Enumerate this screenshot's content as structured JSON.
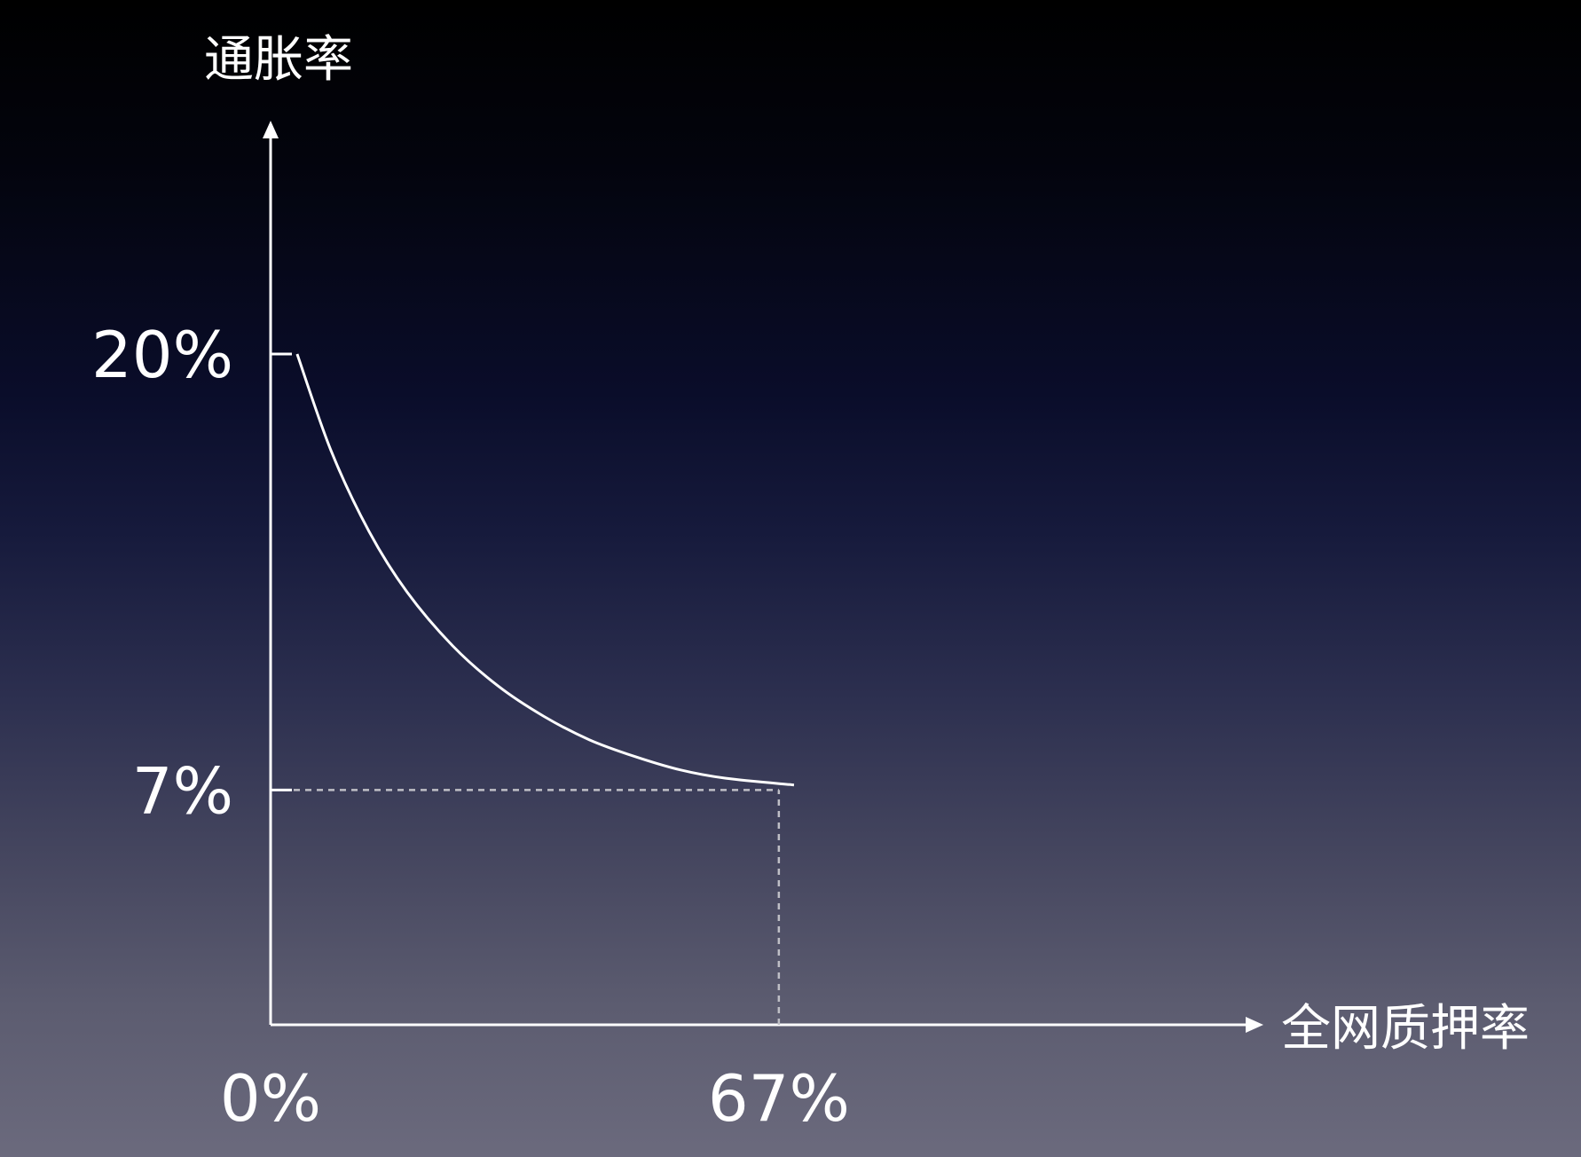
{
  "chart_data": {
    "type": "line",
    "ylabel": "通胀率",
    "xlabel": "全网质押率",
    "x_ticks": [
      {
        "value": 0,
        "label": "0%"
      },
      {
        "value": 67,
        "label": "67%"
      }
    ],
    "y_ticks": [
      {
        "value": 7,
        "label": "7%"
      },
      {
        "value": 20,
        "label": "20%"
      }
    ],
    "xlim": [
      0,
      155
    ],
    "ylim": [
      0,
      30
    ],
    "grid": false,
    "legend": "none",
    "series": [
      {
        "points": [
          {
            "x": 3.5,
            "y": 20
          },
          {
            "x": 8,
            "y": 17.1
          },
          {
            "x": 13,
            "y": 14.7
          },
          {
            "x": 18,
            "y": 12.9
          },
          {
            "x": 24,
            "y": 11.3
          },
          {
            "x": 30,
            "y": 10.1
          },
          {
            "x": 36,
            "y": 9.2
          },
          {
            "x": 42,
            "y": 8.5
          },
          {
            "x": 48,
            "y": 8.0
          },
          {
            "x": 54,
            "y": 7.6
          },
          {
            "x": 60,
            "y": 7.35
          },
          {
            "x": 69,
            "y": 7.15
          }
        ]
      }
    ],
    "reference_lines": [
      {
        "orientation": "horizontal",
        "y": 7,
        "x_from": 0,
        "x_to": 67,
        "style": "dashed"
      },
      {
        "orientation": "vertical",
        "x": 67,
        "y_from": 0,
        "y_to": 7,
        "style": "dashed"
      }
    ],
    "colors": {
      "axis": "#ffffff",
      "curve": "#ffffff",
      "guide": "#bfbfc6"
    }
  }
}
